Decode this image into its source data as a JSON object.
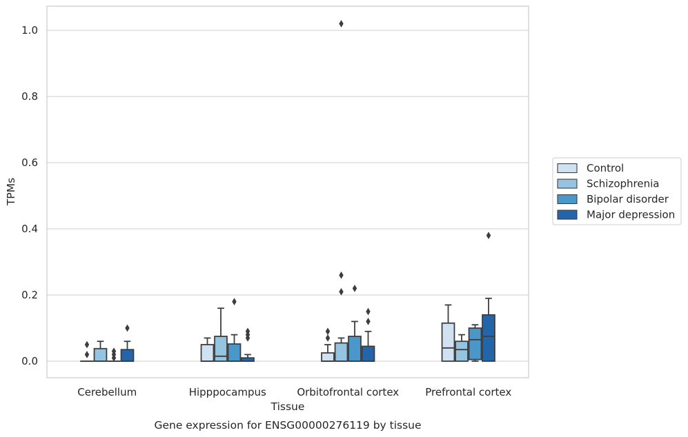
{
  "chart_data": {
    "type": "box",
    "title": "",
    "caption": "Gene expression for ENSG00000276119 by tissue",
    "xlabel": "Tissue",
    "ylabel": "TPMs",
    "ylim": [
      -0.05,
      1.075
    ],
    "yticks": [
      0.0,
      0.2,
      0.4,
      0.6,
      0.8,
      1.0
    ],
    "ytick_labels": [
      "0.0",
      "0.2",
      "0.4",
      "0.6",
      "0.8",
      "1.0"
    ],
    "grid": "horizontal",
    "legend_position": "right",
    "categories": [
      "Cerebellum",
      "Hipppocampus",
      "Orbitofrontal cortex",
      "Prefrontal cortex"
    ],
    "series": [
      {
        "name": "Control",
        "color": "#d0e1f2",
        "boxes": [
          {
            "q1": 0.0,
            "median": 0.0,
            "q3": 0.0,
            "whislo": 0.0,
            "whishi": 0.0,
            "fliers": [
              0.02,
              0.05
            ]
          },
          {
            "q1": 0.0,
            "median": 0.0,
            "q3": 0.05,
            "whislo": 0.0,
            "whishi": 0.07,
            "fliers": []
          },
          {
            "q1": 0.0,
            "median": 0.0,
            "q3": 0.025,
            "whislo": 0.0,
            "whishi": 0.05,
            "fliers": [
              0.07,
              0.09
            ]
          },
          {
            "q1": 0.0,
            "median": 0.04,
            "q3": 0.115,
            "whislo": 0.0,
            "whishi": 0.17,
            "fliers": []
          }
        ]
      },
      {
        "name": "Schizophrenia",
        "color": "#94c4df",
        "boxes": [
          {
            "q1": 0.0,
            "median": 0.0,
            "q3": 0.038,
            "whislo": 0.0,
            "whishi": 0.06,
            "fliers": []
          },
          {
            "q1": 0.0,
            "median": 0.015,
            "q3": 0.075,
            "whislo": 0.0,
            "whishi": 0.16,
            "fliers": []
          },
          {
            "q1": 0.0,
            "median": 0.0,
            "q3": 0.055,
            "whislo": 0.0,
            "whishi": 0.07,
            "fliers": [
              0.21,
              0.26,
              1.02
            ]
          },
          {
            "q1": 0.0,
            "median": 0.035,
            "q3": 0.06,
            "whislo": 0.0,
            "whishi": 0.08,
            "fliers": []
          }
        ]
      },
      {
        "name": "Bipolar disorder",
        "color": "#4a98c9",
        "boxes": [
          {
            "q1": 0.0,
            "median": 0.0,
            "q3": 0.0,
            "whislo": 0.0,
            "whishi": 0.0,
            "fliers": [
              0.01,
              0.02,
              0.03
            ]
          },
          {
            "q1": 0.0,
            "median": 0.0,
            "q3": 0.052,
            "whislo": 0.0,
            "whishi": 0.08,
            "fliers": [
              0.18
            ]
          },
          {
            "q1": 0.0,
            "median": 0.0,
            "q3": 0.075,
            "whislo": 0.0,
            "whishi": 0.12,
            "fliers": [
              0.22
            ]
          },
          {
            "q1": 0.005,
            "median": 0.065,
            "q3": 0.1,
            "whislo": 0.0,
            "whishi": 0.11,
            "fliers": []
          }
        ]
      },
      {
        "name": "Major depression",
        "color": "#2464a8",
        "boxes": [
          {
            "q1": 0.0,
            "median": 0.0,
            "q3": 0.035,
            "whislo": 0.0,
            "whishi": 0.06,
            "fliers": [
              0.1
            ]
          },
          {
            "q1": 0.0,
            "median": 0.0,
            "q3": 0.01,
            "whislo": 0.0,
            "whishi": 0.02,
            "fliers": [
              0.07,
              0.08,
              0.09
            ]
          },
          {
            "q1": 0.0,
            "median": 0.0,
            "q3": 0.045,
            "whislo": 0.0,
            "whishi": 0.09,
            "fliers": [
              0.12,
              0.15
            ]
          },
          {
            "q1": 0.0,
            "median": 0.075,
            "q3": 0.14,
            "whislo": 0.0,
            "whishi": 0.19,
            "fliers": [
              0.38
            ]
          }
        ]
      }
    ]
  }
}
